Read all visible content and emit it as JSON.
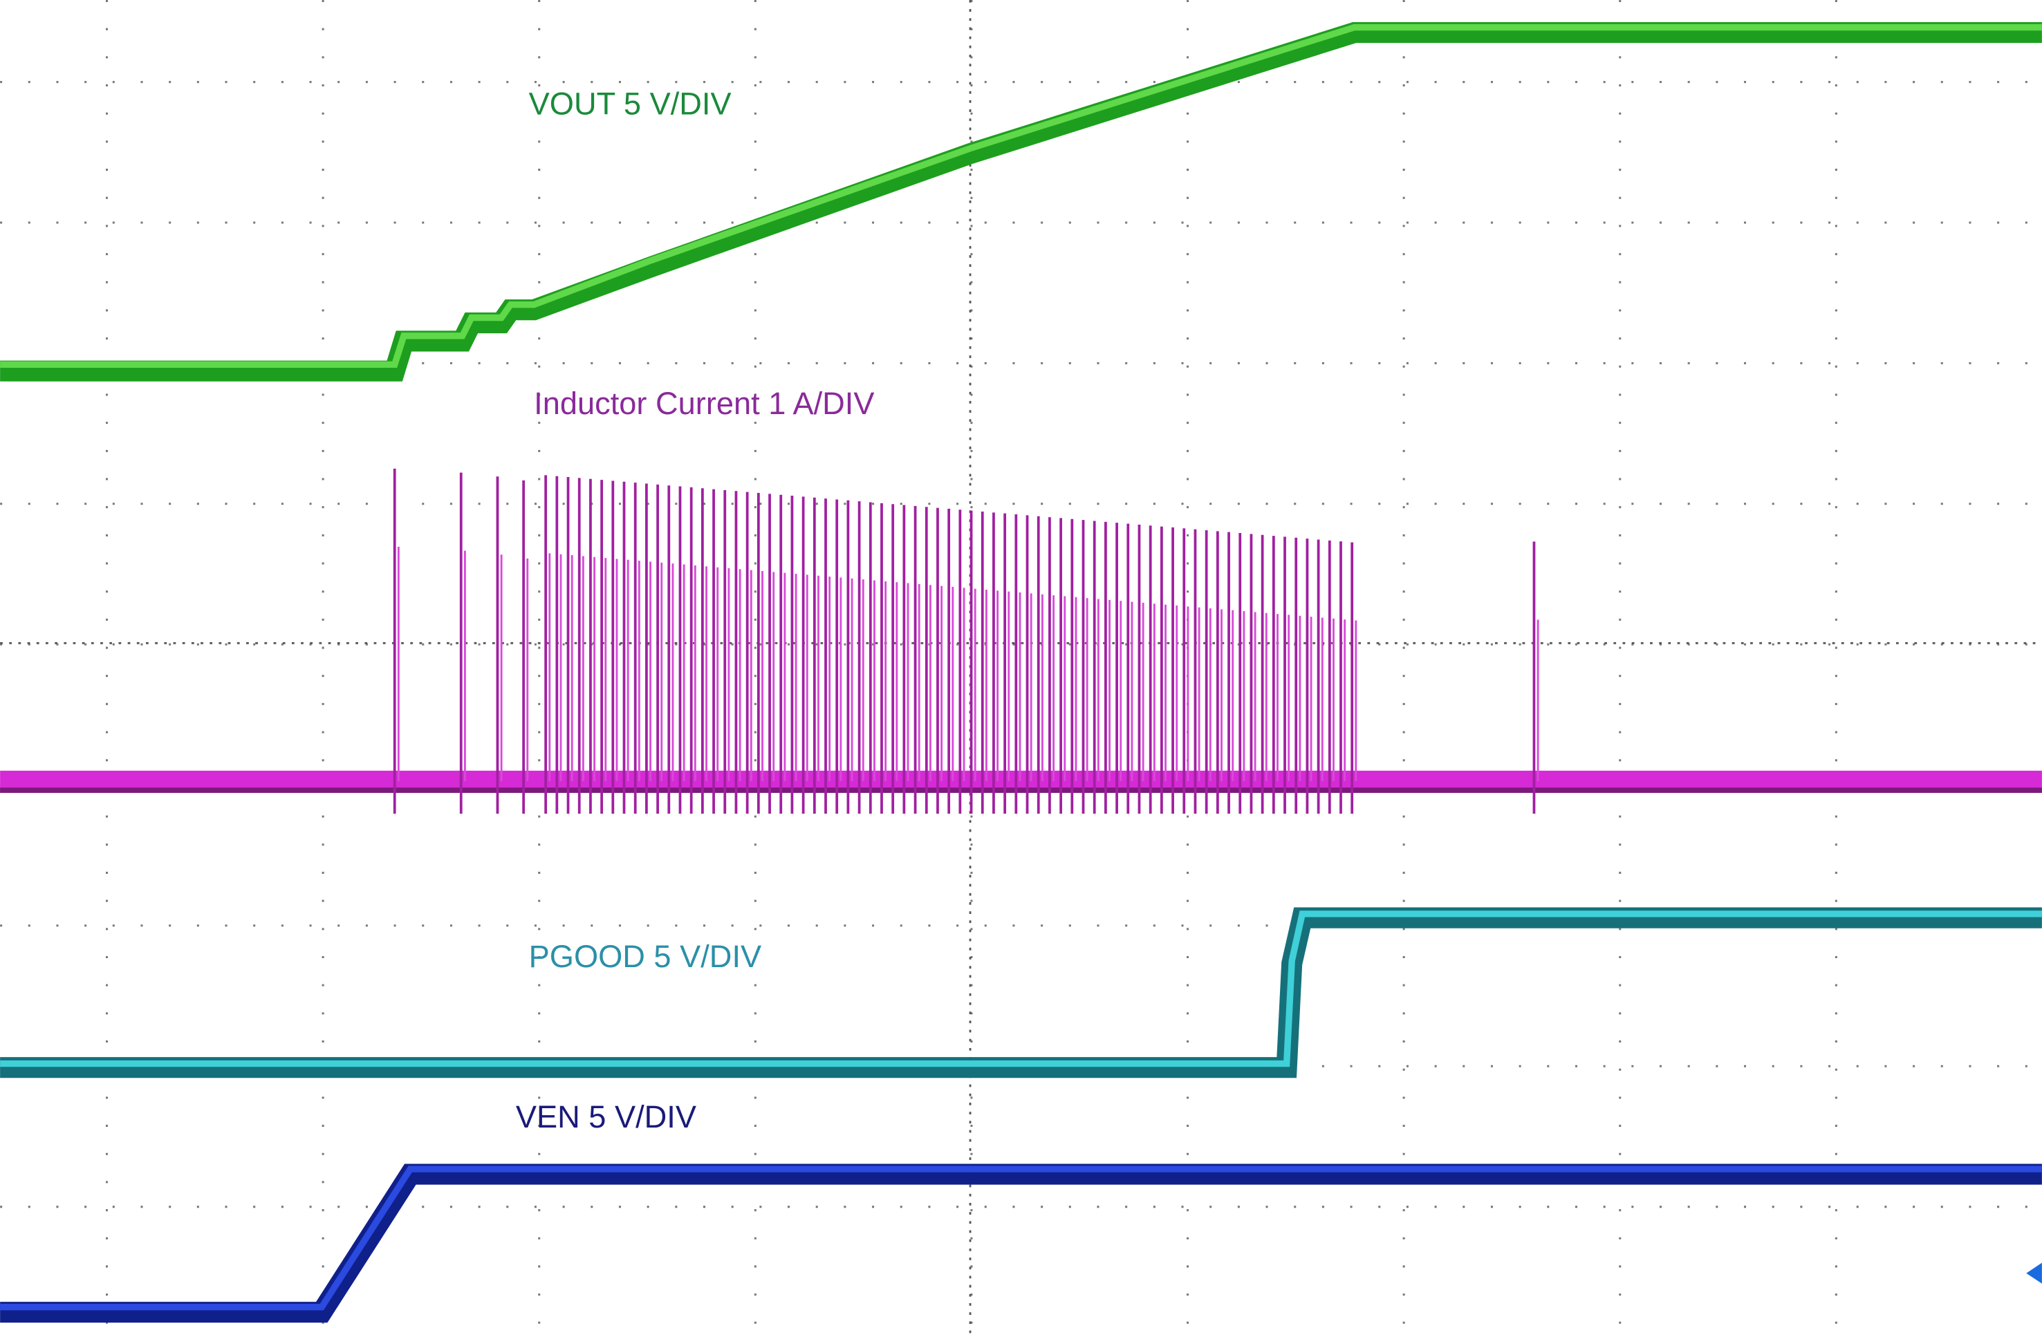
{
  "traces": [
    {
      "label": "VOUT  5 V/DIV",
      "color": "#1a8a3a"
    },
    {
      "label": "Inductor Current 1 A/DIV",
      "color": "#8a2a9a"
    },
    {
      "label": "PGOOD 5 V/DIV",
      "color": "#2a90a8"
    },
    {
      "label": "VEN 5 V/DIV",
      "color": "#1a1a7a"
    }
  ]
}
